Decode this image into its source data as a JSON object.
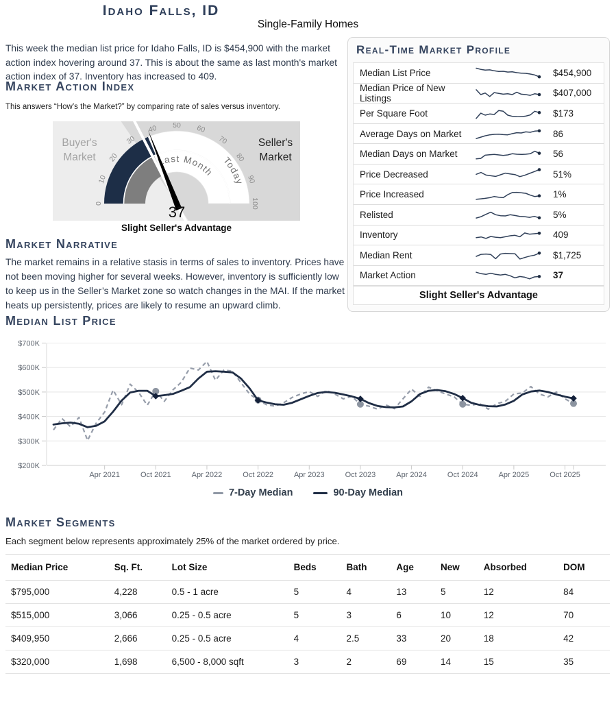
{
  "header": {
    "title": "Idaho Falls, ID",
    "subtitle": "Single-Family Homes",
    "intro": "This week the median list price for Idaho Falls, ID is $454,900 with the market action index hovering around 37. This is about the same as last month's market action index of 37. Inventory has increased to 409."
  },
  "market_action_index": {
    "heading": "Market Action Index",
    "description": "This answers “How’s the Market?” by comparing rate of sales versus inventory.",
    "gauge": {
      "value": 37,
      "value_label": "37",
      "last_month_value": 37,
      "min": 0,
      "max": 100,
      "tick_labels": [
        0,
        10,
        20,
        30,
        40,
        50,
        60,
        70,
        80,
        90,
        100
      ],
      "zone_split_value": 31,
      "buyer_label": [
        "Buyer's",
        "Market"
      ],
      "seller_label": [
        "Seller's",
        "Market"
      ],
      "inner_ring_label": "Last Month",
      "outer_ring_label": "Today",
      "caption": "Slight Seller's Advantage",
      "colors": {
        "today_fill": "#1d2e47",
        "last_month_fill": "#7e7e7e",
        "buyer_bg": "#ededed",
        "seller_bg": "#d8d8d8",
        "ring_bg": "#ffffff",
        "needle": "#000000"
      }
    }
  },
  "market_narrative": {
    "heading": "Market Narrative",
    "text": "The market remains in a relative stasis in terms of sales to inventory. Prices have not been moving higher for several weeks. However, inventory is sufficiently low to keep us in the Seller’s Market zone so watch changes in the MAI. If the market heats up persistently, prices are likely to resume an upward climb."
  },
  "market_profile": {
    "heading": "Real-Time Market Profile",
    "spark_color": "#31415a",
    "rows": [
      {
        "label": "Median List Price",
        "value": "$454,900",
        "bold": false,
        "spark": [
          88,
          78,
          72,
          74,
          66,
          60,
          62,
          55,
          57,
          50,
          46,
          44,
          38,
          30,
          14
        ]
      },
      {
        "label": "Median Price of New Listings",
        "value": "$407,000",
        "bold": false,
        "spark": [
          80,
          38,
          52,
          22,
          55,
          48,
          42,
          45,
          38,
          58,
          42,
          38,
          32,
          45,
          38
        ]
      },
      {
        "label": "Per Square Foot",
        "value": "$173",
        "bold": false,
        "spark": [
          10,
          55,
          38,
          48,
          44,
          78,
          72,
          38,
          28,
          26,
          25,
          30,
          40,
          72,
          60
        ]
      },
      {
        "label": "Average Days on Market",
        "value": "86",
        "bold": false,
        "spark": [
          8,
          20,
          32,
          40,
          44,
          46,
          42,
          40,
          50,
          58,
          56,
          65,
          62,
          72,
          74
        ]
      },
      {
        "label": "Median Days on Market",
        "value": "56",
        "bold": false,
        "spark": [
          10,
          14,
          42,
          46,
          48,
          44,
          40,
          44,
          54,
          50,
          48,
          50,
          54,
          76,
          58
        ]
      },
      {
        "label": "Price Decreased",
        "value": "51%",
        "bold": false,
        "spark": [
          48,
          64,
          42,
          36,
          30,
          44,
          58,
          52,
          46,
          28,
          40,
          56,
          72,
          88
        ]
      },
      {
        "label": "Price Increased",
        "value": "1%",
        "bold": false,
        "spark": [
          10,
          14,
          18,
          24,
          34,
          28,
          24,
          50,
          68,
          70,
          66,
          62,
          46,
          34,
          40
        ]
      },
      {
        "label": "Relisted",
        "value": "5%",
        "bold": false,
        "spark": [
          20,
          32,
          52,
          70,
          48,
          40,
          38,
          48,
          42,
          34,
          32,
          26,
          34,
          22
        ]
      },
      {
        "label": "Inventory",
        "value": "409",
        "bold": false,
        "spark": [
          28,
          34,
          22,
          38,
          32,
          28,
          36,
          44,
          48,
          36,
          68,
          58,
          62,
          66
        ]
      },
      {
        "label": "Median Rent",
        "value": "$1,725",
        "bold": false,
        "spark": [
          38,
          55,
          58,
          54,
          18,
          58,
          64,
          62,
          60,
          15,
          28,
          40,
          48,
          66
        ]
      },
      {
        "label": "Market Action",
        "value": "37",
        "bold": true,
        "spark": [
          78,
          66,
          60,
          70,
          60,
          54,
          60,
          48,
          30,
          42,
          36,
          22,
          38,
          42
        ]
      }
    ],
    "footer": "Slight Seller's Advantage"
  },
  "median_list_price": {
    "heading": "Median List Price"
  },
  "chart_data": {
    "type": "line",
    "title": "Median List Price",
    "x_unit": "month",
    "x_start": "Oct 2020",
    "x_end": "Nov 2025",
    "ylim_dollars": [
      200000,
      700000
    ],
    "grid": true,
    "y_ticks": [
      {
        "label": "$700K",
        "value": 700
      },
      {
        "label": "$600K",
        "value": 600
      },
      {
        "label": "$500K",
        "value": 500
      },
      {
        "label": "$400K",
        "value": 400
      },
      {
        "label": "$300K",
        "value": 300
      },
      {
        "label": "$200K",
        "value": 200
      }
    ],
    "x_ticks": [
      {
        "label": "Apr 2021",
        "month_index": 6
      },
      {
        "label": "Oct 2021",
        "month_index": 12
      },
      {
        "label": "Apr 2022",
        "month_index": 18
      },
      {
        "label": "Oct 2022",
        "month_index": 24
      },
      {
        "label": "Apr 2023",
        "month_index": 30
      },
      {
        "label": "Oct 2023",
        "month_index": 36
      },
      {
        "label": "Apr 2024",
        "month_index": 42
      },
      {
        "label": "Oct 2024",
        "month_index": 48
      },
      {
        "label": "Apr 2025",
        "month_index": 54
      },
      {
        "label": "Oct 2025",
        "month_index": 60
      }
    ],
    "marker_month_indices": [
      12,
      24,
      36,
      48,
      61
    ],
    "series": [
      {
        "name": "7-Day Median",
        "style": "dashed",
        "color": "#9098a5",
        "marker": "circle",
        "marker_color": "#878f9c",
        "values_thousands": [
          345,
          392,
          358,
          396,
          302,
          372,
          418,
          508,
          448,
          532,
          498,
          446,
          503,
          462,
          508,
          540,
          598,
          590,
          625,
          548,
          590,
          585,
          538,
          492,
          467,
          448,
          442,
          456,
          478,
          492,
          502,
          482,
          506,
          492,
          472,
          482,
          450,
          442,
          430,
          447,
          432,
          472,
          512,
          482,
          520,
          505,
          492,
          480,
          450,
          446,
          452,
          430,
          452,
          462,
          492,
          496,
          522,
          492,
          480,
          500,
          472,
          453
        ]
      },
      {
        "name": "90-Day Median",
        "style": "solid",
        "color": "#202e46",
        "marker": "diamond",
        "marker_color": "#13203a",
        "values_thousands": [
          367,
          372,
          375,
          370,
          356,
          362,
          380,
          420,
          465,
          498,
          505,
          505,
          483,
          487,
          492,
          505,
          520,
          555,
          583,
          585,
          583,
          580,
          555,
          515,
          466,
          457,
          450,
          448,
          456,
          470,
          484,
          496,
          500,
          497,
          490,
          482,
          472,
          455,
          443,
          438,
          437,
          441,
          462,
          492,
          505,
          508,
          503,
          492,
          475,
          456,
          447,
          442,
          441,
          449,
          464,
          490,
          502,
          506,
          500,
          490,
          481,
          474
        ]
      }
    ],
    "legend_position": "bottom"
  },
  "market_segments": {
    "heading": "Market Segments",
    "subtitle": "Each segment below represents approximately 25% of the market ordered by price.",
    "columns": [
      "Median Price",
      "Sq. Ft.",
      "Lot Size",
      "Beds",
      "Bath",
      "Age",
      "New",
      "Absorbed",
      "DOM"
    ],
    "rows": [
      [
        "$795,000",
        "4,228",
        "0.5 - 1 acre",
        "5",
        "4",
        "13",
        "5",
        "12",
        "84"
      ],
      [
        "$515,000",
        "3,066",
        "0.25 - 0.5 acre",
        "5",
        "3",
        "6",
        "10",
        "12",
        "70"
      ],
      [
        "$409,950",
        "2,666",
        "0.25 - 0.5 acre",
        "4",
        "2.5",
        "33",
        "20",
        "18",
        "42"
      ],
      [
        "$320,000",
        "1,698",
        "6,500 - 8,000 sqft",
        "3",
        "2",
        "69",
        "14",
        "15",
        "35"
      ]
    ]
  }
}
